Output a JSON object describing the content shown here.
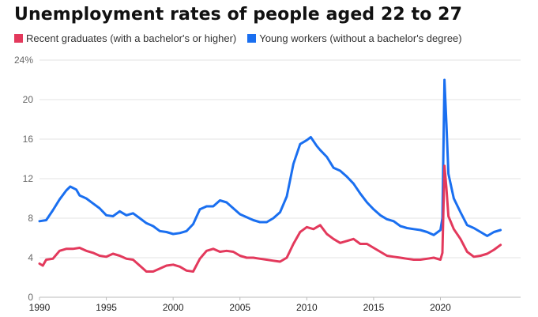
{
  "chart_data": {
    "type": "line",
    "title": "Unemployment rates of people aged 22 to 27",
    "xlabel": "",
    "ylabel": "",
    "ylim": [
      0,
      24
    ],
    "xlim": [
      1990,
      2024.5
    ],
    "y_ticks": [
      0,
      4,
      8,
      12,
      16,
      20,
      24
    ],
    "y_tick_labels": [
      "0",
      "4",
      "8",
      "12",
      "16",
      "20",
      "24%"
    ],
    "x_ticks": [
      "1990",
      "1995",
      "2000",
      "2005",
      "2010",
      "2015",
      "2020"
    ],
    "grid": true,
    "legend_placement": "top-left",
    "series": [
      {
        "name": "Recent graduates (with a bachelor's or higher)",
        "color": "#e3395c",
        "points": [
          [
            1990,
            3.4
          ],
          [
            1990.25,
            3.2
          ],
          [
            1990.5,
            3.8
          ],
          [
            1991,
            3.9
          ],
          [
            1991.5,
            4.7
          ],
          [
            1992,
            4.9
          ],
          [
            1992.5,
            4.9
          ],
          [
            1993,
            5.0
          ],
          [
            1993.5,
            4.7
          ],
          [
            1994,
            4.5
          ],
          [
            1994.5,
            4.2
          ],
          [
            1995,
            4.1
          ],
          [
            1995.5,
            4.4
          ],
          [
            1996,
            4.2
          ],
          [
            1996.5,
            3.9
          ],
          [
            1997,
            3.8
          ],
          [
            1997.5,
            3.2
          ],
          [
            1998,
            2.6
          ],
          [
            1998.5,
            2.6
          ],
          [
            1999,
            2.9
          ],
          [
            1999.5,
            3.2
          ],
          [
            2000,
            3.3
          ],
          [
            2000.5,
            3.1
          ],
          [
            2001,
            2.7
          ],
          [
            2001.5,
            2.6
          ],
          [
            2002,
            3.9
          ],
          [
            2002.5,
            4.7
          ],
          [
            2003,
            4.9
          ],
          [
            2003.5,
            4.6
          ],
          [
            2004,
            4.7
          ],
          [
            2004.5,
            4.6
          ],
          [
            2005,
            4.2
          ],
          [
            2005.5,
            4.0
          ],
          [
            2006,
            4.0
          ],
          [
            2006.5,
            3.9
          ],
          [
            2007,
            3.8
          ],
          [
            2007.5,
            3.7
          ],
          [
            2008,
            3.6
          ],
          [
            2008.5,
            4.0
          ],
          [
            2009,
            5.4
          ],
          [
            2009.5,
            6.6
          ],
          [
            2010,
            7.1
          ],
          [
            2010.5,
            6.9
          ],
          [
            2011,
            7.3
          ],
          [
            2011.5,
            6.4
          ],
          [
            2012,
            5.9
          ],
          [
            2012.5,
            5.5
          ],
          [
            2013,
            5.7
          ],
          [
            2013.5,
            5.9
          ],
          [
            2014,
            5.4
          ],
          [
            2014.5,
            5.4
          ],
          [
            2015,
            5.0
          ],
          [
            2015.5,
            4.6
          ],
          [
            2016,
            4.2
          ],
          [
            2016.5,
            4.1
          ],
          [
            2017,
            4.0
          ],
          [
            2017.5,
            3.9
          ],
          [
            2018,
            3.8
          ],
          [
            2018.5,
            3.8
          ],
          [
            2019,
            3.9
          ],
          [
            2019.5,
            4.0
          ],
          [
            2020,
            3.8
          ],
          [
            2020.15,
            4.5
          ],
          [
            2020.3,
            13.3
          ],
          [
            2020.45,
            11.0
          ],
          [
            2020.6,
            8.2
          ],
          [
            2021,
            6.9
          ],
          [
            2021.5,
            5.9
          ],
          [
            2022,
            4.6
          ],
          [
            2022.5,
            4.1
          ],
          [
            2023,
            4.2
          ],
          [
            2023.5,
            4.4
          ],
          [
            2024,
            4.8
          ],
          [
            2024.5,
            5.3
          ]
        ]
      },
      {
        "name": "Young workers (without a bachelor's degree)",
        "color": "#1a6ff0",
        "points": [
          [
            1990,
            7.7
          ],
          [
            1990.5,
            7.8
          ],
          [
            1991,
            8.8
          ],
          [
            1991.5,
            9.9
          ],
          [
            1992,
            10.8
          ],
          [
            1992.3,
            11.2
          ],
          [
            1992.75,
            10.9
          ],
          [
            1993,
            10.3
          ],
          [
            1993.5,
            10.0
          ],
          [
            1994,
            9.5
          ],
          [
            1994.5,
            9.0
          ],
          [
            1995,
            8.3
          ],
          [
            1995.5,
            8.2
          ],
          [
            1996,
            8.7
          ],
          [
            1996.5,
            8.3
          ],
          [
            1997,
            8.5
          ],
          [
            1997.5,
            8.0
          ],
          [
            1998,
            7.5
          ],
          [
            1998.5,
            7.2
          ],
          [
            1999,
            6.7
          ],
          [
            1999.5,
            6.6
          ],
          [
            2000,
            6.4
          ],
          [
            2000.5,
            6.5
          ],
          [
            2001,
            6.7
          ],
          [
            2001.5,
            7.4
          ],
          [
            2002,
            8.9
          ],
          [
            2002.5,
            9.2
          ],
          [
            2003,
            9.2
          ],
          [
            2003.5,
            9.8
          ],
          [
            2004,
            9.6
          ],
          [
            2004.5,
            9.0
          ],
          [
            2005,
            8.4
          ],
          [
            2005.5,
            8.1
          ],
          [
            2006,
            7.8
          ],
          [
            2006.5,
            7.6
          ],
          [
            2007,
            7.6
          ],
          [
            2007.5,
            8.0
          ],
          [
            2008,
            8.6
          ],
          [
            2008.5,
            10.2
          ],
          [
            2009,
            13.5
          ],
          [
            2009.5,
            15.5
          ],
          [
            2010,
            15.9
          ],
          [
            2010.3,
            16.2
          ],
          [
            2010.75,
            15.3
          ],
          [
            2011,
            14.9
          ],
          [
            2011.5,
            14.2
          ],
          [
            2012,
            13.1
          ],
          [
            2012.5,
            12.8
          ],
          [
            2013,
            12.2
          ],
          [
            2013.5,
            11.5
          ],
          [
            2014,
            10.5
          ],
          [
            2014.5,
            9.6
          ],
          [
            2015,
            8.9
          ],
          [
            2015.5,
            8.3
          ],
          [
            2016,
            7.9
          ],
          [
            2016.5,
            7.7
          ],
          [
            2017,
            7.2
          ],
          [
            2017.5,
            7.0
          ],
          [
            2018,
            6.9
          ],
          [
            2018.5,
            6.8
          ],
          [
            2019,
            6.6
          ],
          [
            2019.5,
            6.3
          ],
          [
            2020,
            6.8
          ],
          [
            2020.15,
            8.0
          ],
          [
            2020.3,
            22.0
          ],
          [
            2020.45,
            17.5
          ],
          [
            2020.6,
            12.5
          ],
          [
            2021,
            10.0
          ],
          [
            2021.5,
            8.6
          ],
          [
            2022,
            7.3
          ],
          [
            2022.5,
            7.0
          ],
          [
            2023,
            6.6
          ],
          [
            2023.5,
            6.2
          ],
          [
            2024,
            6.6
          ],
          [
            2024.5,
            6.8
          ]
        ]
      }
    ]
  }
}
